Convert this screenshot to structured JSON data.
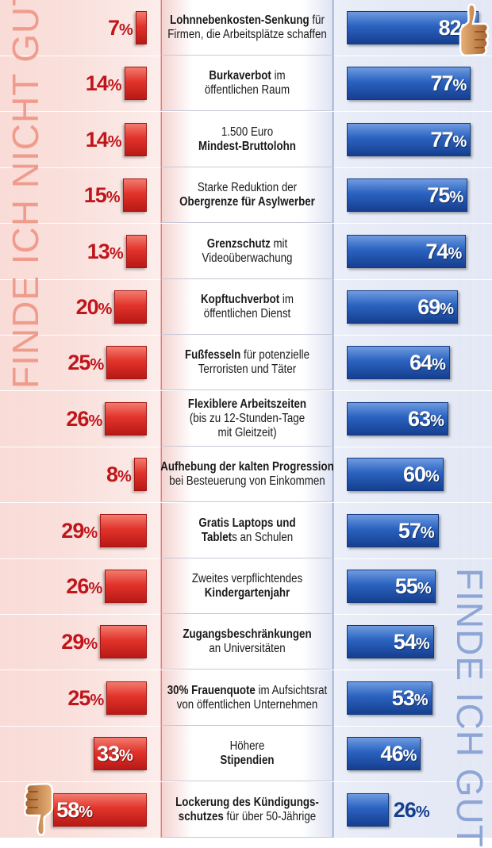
{
  "chart_data": {
    "type": "bar",
    "orientation": "diverging-horizontal",
    "left_title": "FINDE ICH NICHT GUT",
    "right_title": "FINDE ICH GUT",
    "unit": "%",
    "colors": {
      "negative": "#d8261f",
      "positive": "#2457b3",
      "left_title": "#ef9c8c",
      "right_title": "#8ea6d6"
    },
    "icons": {
      "top": "thumbs-up-icon",
      "bottom": "thumbs-down-icon"
    },
    "items": [
      {
        "lines": [
          [
            {
              "text": "Lohnnebenkosten-Senkung",
              "bold": true
            },
            {
              "text": " für"
            }
          ],
          [
            {
              "text": "Firmen, die Arbeitsplätze schaffen"
            }
          ]
        ],
        "not_good": 7,
        "good": 82
      },
      {
        "lines": [
          [
            {
              "text": "Burkaverbot",
              "bold": true
            },
            {
              "text": " im"
            }
          ],
          [
            {
              "text": "öffentlichen Raum"
            }
          ]
        ],
        "not_good": 14,
        "good": 77
      },
      {
        "lines": [
          [
            {
              "text": "1.500 Euro"
            }
          ],
          [
            {
              "text": "Mindest-Bruttolohn",
              "bold": true
            }
          ]
        ],
        "not_good": 14,
        "good": 77
      },
      {
        "lines": [
          [
            {
              "text": "Starke Reduktion der"
            }
          ],
          [
            {
              "text": "Obergrenze für Asylwerber",
              "bold": true
            }
          ]
        ],
        "not_good": 15,
        "good": 75
      },
      {
        "lines": [
          [
            {
              "text": "Grenzschutz",
              "bold": true
            },
            {
              "text": " mit"
            }
          ],
          [
            {
              "text": "Videoüberwachung"
            }
          ]
        ],
        "not_good": 13,
        "good": 74
      },
      {
        "lines": [
          [
            {
              "text": "Kopftuchverbot",
              "bold": true
            },
            {
              "text": " im"
            }
          ],
          [
            {
              "text": "öffentlichen Dienst"
            }
          ]
        ],
        "not_good": 20,
        "good": 69
      },
      {
        "lines": [
          [
            {
              "text": "Fußfesseln",
              "bold": true
            },
            {
              "text": " für potenzielle"
            }
          ],
          [
            {
              "text": "Terroristen und Täter"
            }
          ]
        ],
        "not_good": 25,
        "good": 64
      },
      {
        "lines": [
          [
            {
              "text": "Flexiblere Arbeitszeiten",
              "bold": true
            }
          ],
          [
            {
              "text": "(bis zu 12-Stunden-Tage"
            }
          ],
          [
            {
              "text": "mit Gleitzeit)"
            }
          ]
        ],
        "not_good": 26,
        "good": 63
      },
      {
        "lines": [
          [
            {
              "text": "Aufhebung der kalten Progression",
              "bold": true
            }
          ],
          [
            {
              "text": "bei Besteuerung von Einkommen"
            }
          ]
        ],
        "not_good": 8,
        "good": 60
      },
      {
        "lines": [
          [
            {
              "text": "Gratis Laptops und",
              "bold": true
            }
          ],
          [
            {
              "text": "Tablet",
              "bold": true
            },
            {
              "text": "s an Schulen"
            }
          ]
        ],
        "not_good": 29,
        "good": 57
      },
      {
        "lines": [
          [
            {
              "text": "Zweites verpflichtendes"
            }
          ],
          [
            {
              "text": "Kindergartenjahr",
              "bold": true
            }
          ]
        ],
        "not_good": 26,
        "good": 55
      },
      {
        "lines": [
          [
            {
              "text": "Zugangsbeschränkungen",
              "bold": true
            }
          ],
          [
            {
              "text": "an Universitäten"
            }
          ]
        ],
        "not_good": 29,
        "good": 54
      },
      {
        "lines": [
          [
            {
              "text": "30% Frauenquote",
              "bold": true
            },
            {
              "text": " im Aufsichtsrat"
            }
          ],
          [
            {
              "text": "von öffentlichen Unternehmen"
            }
          ]
        ],
        "not_good": 25,
        "good": 53
      },
      {
        "lines": [
          [
            {
              "text": "Höhere"
            }
          ],
          [
            {
              "text": "Stipendien",
              "bold": true
            }
          ]
        ],
        "not_good": 33,
        "good": 46
      },
      {
        "lines": [
          [
            {
              "text": "Lockerung des Kündigungs-",
              "bold": true
            }
          ],
          [
            {
              "text": "schutzes",
              "bold": true
            },
            {
              "text": " für über 50-Jährige"
            }
          ]
        ],
        "not_good": 58,
        "good": 26
      }
    ]
  }
}
